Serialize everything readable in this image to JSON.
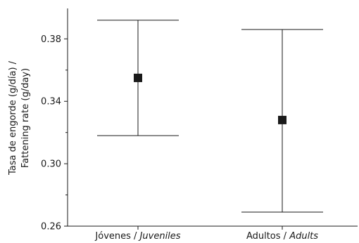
{
  "chart_data": {
    "type": "scatter",
    "title": "",
    "ylabel_lines": [
      "Tasa de engorde (g/día) /",
      "Fattening rate (g/day)"
    ],
    "xlabel": "",
    "ylim": [
      0.26,
      0.398
    ],
    "yticks": [
      0.26,
      0.3,
      0.34,
      0.38
    ],
    "ytick_labels": [
      "0.26",
      "0.30",
      "0.34",
      "0.38"
    ],
    "yminor_ticks": [
      0.28,
      0.32,
      0.36
    ],
    "categories": [
      {
        "plain": "Jóvenes / ",
        "italic": "Juveniles"
      },
      {
        "plain": "Adultos / ",
        "italic": "Adults"
      }
    ],
    "values": [
      0.355,
      0.328
    ],
    "error_low": [
      0.318,
      0.269
    ],
    "error_high": [
      0.392,
      0.386
    ],
    "grid": false,
    "legend": "none",
    "marker_color": "#1a1a1a"
  }
}
